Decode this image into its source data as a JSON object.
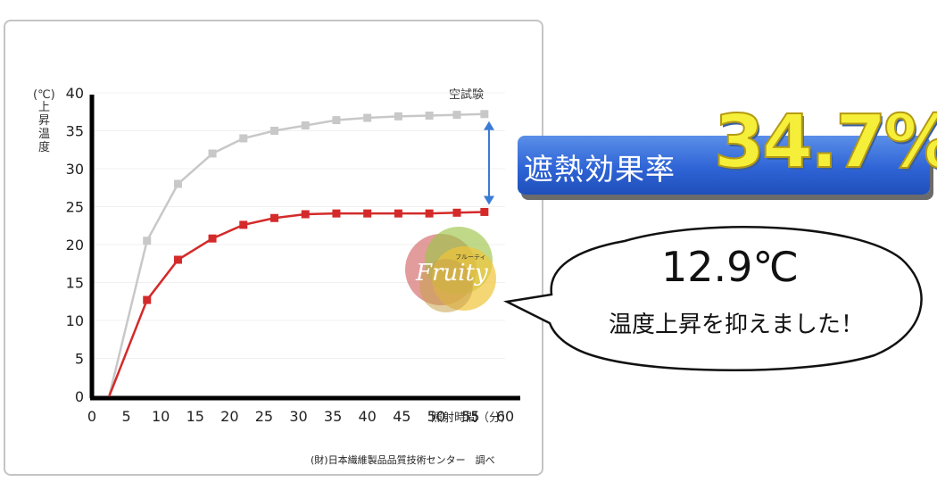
{
  "chart_data": {
    "type": "line",
    "y_unit": "(℃)",
    "ylabel": "上昇温度",
    "xlabel": "照射時間（分）",
    "xlim": [
      0,
      60
    ],
    "ylim": [
      0,
      40
    ],
    "x_ticks": [
      0,
      5,
      10,
      15,
      20,
      25,
      30,
      35,
      40,
      45,
      50,
      55,
      60
    ],
    "y_ticks": [
      0,
      5,
      10,
      15,
      20,
      25,
      30,
      35,
      40
    ],
    "annotation": "空試験",
    "series": [
      {
        "name": "空試験",
        "color": "#c8c8c8",
        "x": [
          2.5,
          8,
          12.5,
          17.5,
          22,
          26.5,
          31,
          35.5,
          40,
          44.5,
          49,
          53,
          57
        ],
        "y": [
          0,
          20.5,
          28,
          32,
          34,
          35,
          35.7,
          36.4,
          36.7,
          36.9,
          37,
          37.1,
          37.2
        ]
      },
      {
        "color": "#d42a2a",
        "x": [
          2.5,
          8,
          12.5,
          17.5,
          22,
          26.5,
          31,
          35.5,
          40,
          44.5,
          49,
          53,
          57
        ],
        "y": [
          0,
          12.7,
          18,
          20.8,
          22.6,
          23.5,
          24,
          24.1,
          24.1,
          24.1,
          24.1,
          24.2,
          24.3
        ]
      }
    ]
  },
  "source_note": "(財)日本繊維製品品質技術センター　調べ",
  "banner": {
    "label": "遮熱効果率",
    "value": "34.7%"
  },
  "bubble": {
    "temperature": "12.9℃",
    "message": "温度上昇を抑えました！"
  },
  "logo": {
    "text": "Fruity",
    "subtext": "フルーティ"
  },
  "colors": {
    "banner_blue": "#2f64d6",
    "value_yellow": "#f6ef3a",
    "arrow_blue": "#3a7bd5"
  }
}
